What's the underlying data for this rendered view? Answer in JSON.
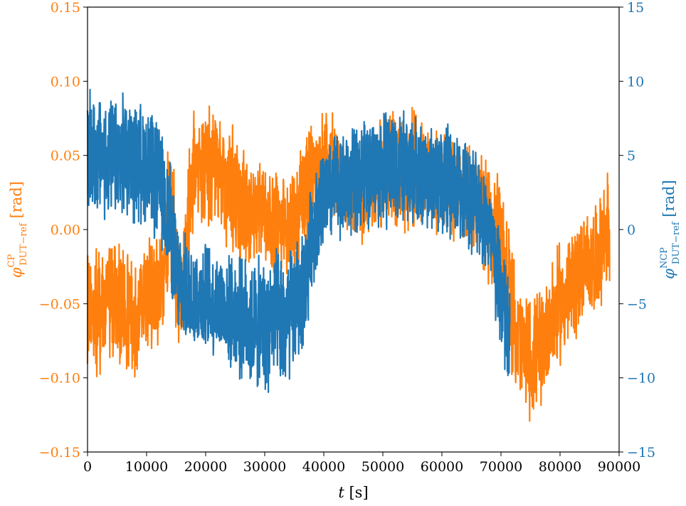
{
  "chart_data": {
    "type": "line",
    "xlabel": {
      "var": "t",
      "unit": " [s]"
    },
    "xlim": [
      0,
      90000
    ],
    "x_ticks": [
      "0",
      "10000",
      "20000",
      "30000",
      "40000",
      "50000",
      "60000",
      "70000",
      "80000",
      "90000"
    ],
    "y_left": {
      "label": {
        "base": "φ",
        "sup": "CP",
        "sub": "DUT−ref",
        "unit": " [rad]"
      },
      "ylim": [
        -0.15,
        0.15
      ],
      "ticks": [
        "−0.15",
        "−0.10",
        "−0.05",
        "0.00",
        "0.05",
        "0.10",
        "0.15"
      ],
      "color": "#ff7f0e"
    },
    "y_right": {
      "label": {
        "base": "φ",
        "sup": "NCP",
        "sub": "DUT−ref",
        "unit": " [rad]"
      },
      "ylim": [
        -15,
        15
      ],
      "ticks": [
        "−15",
        "−10",
        "−5",
        "0",
        "5",
        "10",
        "15"
      ],
      "color": "#1f77b4"
    },
    "series": [
      {
        "axis": "left",
        "color": "#ff7f0e",
        "x": [
          0,
          2000,
          4000,
          6000,
          8000,
          10000,
          12000,
          13000,
          14000,
          15000,
          16000,
          18000,
          20000,
          22000,
          24000,
          26000,
          28000,
          30000,
          32000,
          34000,
          36000,
          38000,
          40000,
          42000,
          44000,
          46000,
          48000,
          50000,
          52000,
          54000,
          56000,
          58000,
          60000,
          62000,
          64000,
          66000,
          68000,
          70000,
          71500,
          72000,
          74000,
          76000,
          78000,
          80000,
          82000,
          84000,
          86000,
          88000,
          88400
        ],
        "center": [
          -0.055,
          -0.055,
          -0.045,
          -0.055,
          -0.06,
          -0.045,
          -0.04,
          -0.02,
          0.02,
          -0.03,
          -0.04,
          0.045,
          0.045,
          0.04,
          0.03,
          0.015,
          0.01,
          0.005,
          0.005,
          0.0,
          0.02,
          0.035,
          0.045,
          0.04,
          0.03,
          0.025,
          0.035,
          0.04,
          0.04,
          0.04,
          0.04,
          0.035,
          0.03,
          0.025,
          0.025,
          0.02,
          0.005,
          -0.01,
          -0.04,
          -0.06,
          -0.085,
          -0.085,
          -0.065,
          -0.05,
          -0.04,
          -0.025,
          -0.02,
          0.0,
          -0.01
        ],
        "spread": [
          0.045,
          0.045,
          0.045,
          0.045,
          0.045,
          0.045,
          0.045,
          0.05,
          0.06,
          0.05,
          0.045,
          0.045,
          0.045,
          0.045,
          0.045,
          0.045,
          0.04,
          0.04,
          0.04,
          0.04,
          0.045,
          0.045,
          0.04,
          0.04,
          0.04,
          0.04,
          0.04,
          0.045,
          0.045,
          0.045,
          0.045,
          0.04,
          0.04,
          0.04,
          0.04,
          0.04,
          0.045,
          0.045,
          0.05,
          0.045,
          0.045,
          0.045,
          0.045,
          0.045,
          0.045,
          0.04,
          0.04,
          0.045,
          0.045
        ]
      },
      {
        "axis": "right",
        "color": "#1f77b4",
        "x": [
          0,
          2000,
          4000,
          6000,
          8000,
          10000,
          12000,
          14000,
          15000,
          16000,
          18000,
          20000,
          22000,
          24000,
          26000,
          28000,
          30000,
          32000,
          33000,
          34000,
          36000,
          37000,
          38000,
          40000,
          42000,
          44000,
          46000,
          48000,
          50000,
          52000,
          54000,
          56000,
          58000,
          60000,
          62000,
          64000,
          66000,
          68000,
          69000,
          70000,
          70500,
          71000,
          71500
        ],
        "center": [
          5.0,
          5.0,
          4.5,
          5.0,
          4.5,
          4.5,
          3.0,
          0.5,
          -3.0,
          -4.0,
          -4.5,
          -4.5,
          -5.0,
          -5.5,
          -6.0,
          -6.5,
          -6.5,
          -6.0,
          -6.5,
          -6.0,
          -4.5,
          -3.5,
          0.0,
          2.0,
          3.0,
          3.0,
          3.5,
          4.0,
          4.0,
          4.5,
          4.0,
          4.0,
          3.5,
          3.5,
          3.0,
          2.5,
          2.0,
          0.0,
          -2.5,
          -4.0,
          -5.5,
          -7.0,
          -8.0
        ],
        "spread": [
          4.5,
          4.5,
          4.5,
          4.5,
          4.5,
          4.5,
          4.5,
          4.5,
          4.5,
          4.0,
          4.0,
          4.0,
          4.0,
          4.0,
          4.5,
          5.0,
          5.0,
          5.0,
          5.5,
          5.0,
          4.5,
          4.5,
          4.0,
          4.0,
          4.0,
          4.0,
          4.0,
          4.0,
          4.5,
          4.5,
          4.0,
          4.0,
          4.0,
          4.5,
          4.0,
          4.0,
          4.0,
          4.0,
          4.5,
          5.0,
          5.0,
          5.0,
          5.0
        ]
      }
    ],
    "grid": false,
    "legend": "none"
  }
}
